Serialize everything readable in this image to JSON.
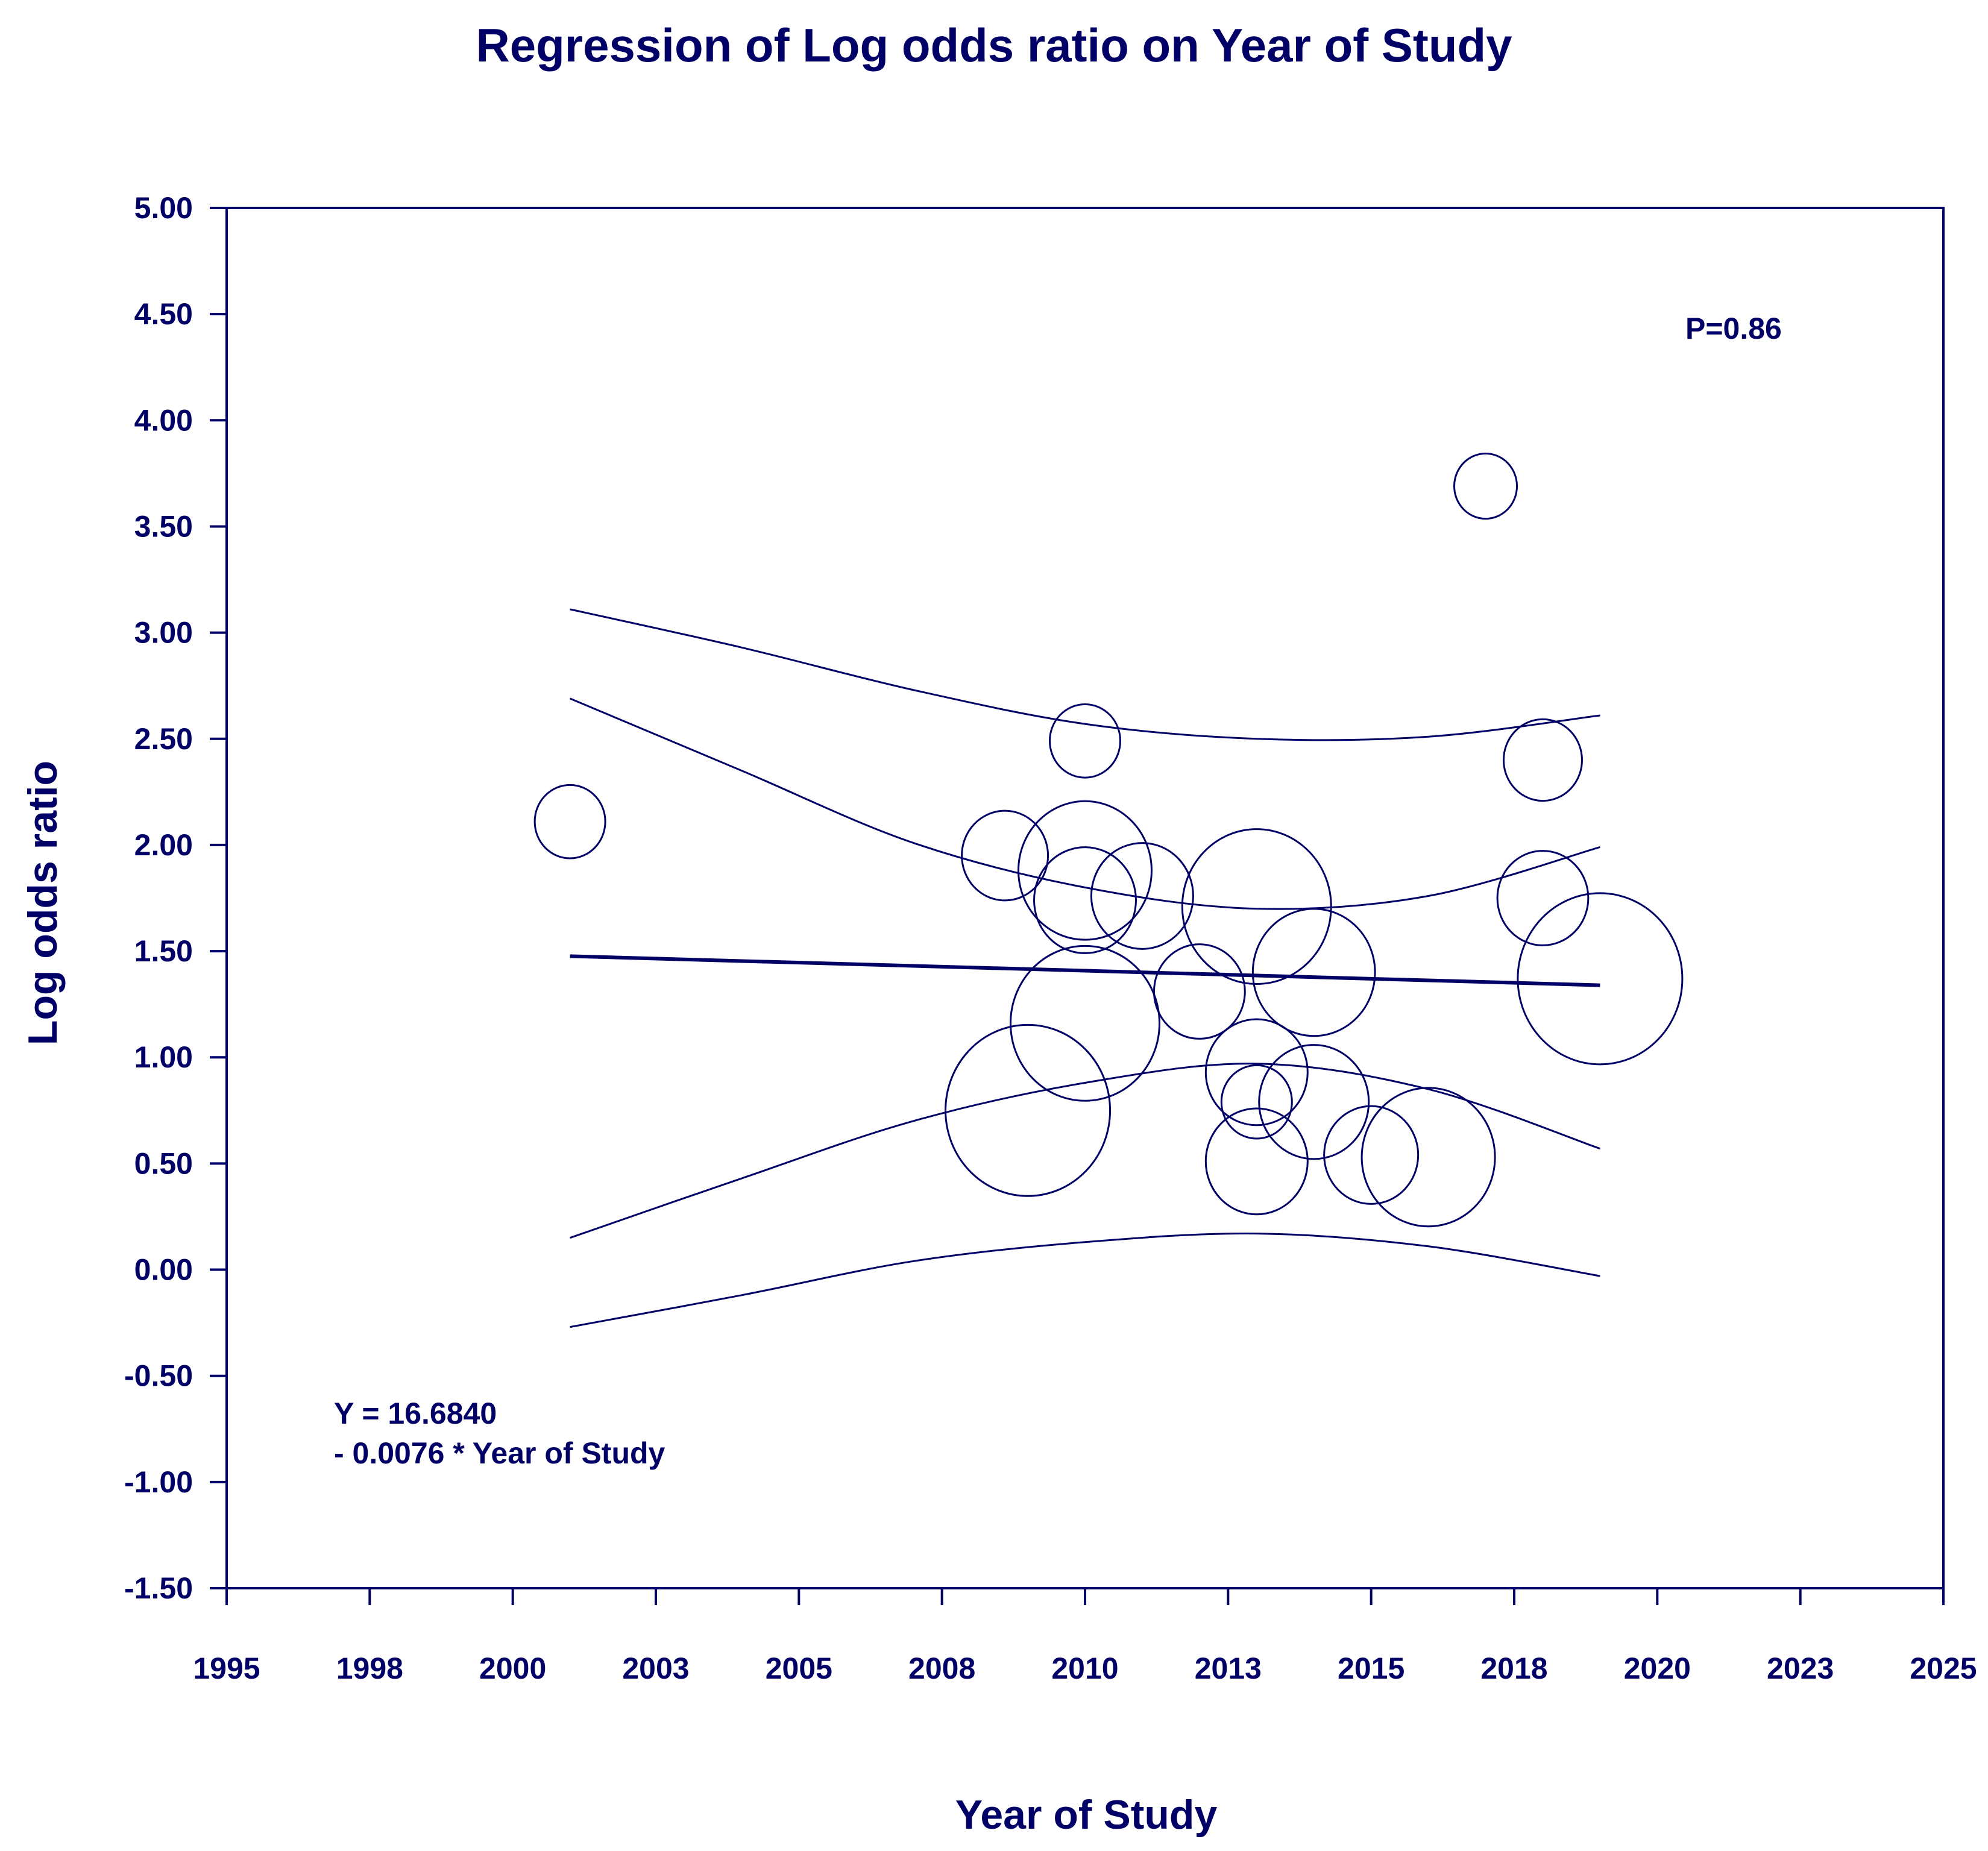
{
  "chart_data": {
    "type": "scatter",
    "title": "Regression of Log odds ratio on Year of Study",
    "xlabel": "Year of Study",
    "ylabel": "Log odds ratio",
    "xlim": [
      1995,
      2025
    ],
    "ylim": [
      -1.5,
      5.0
    ],
    "x_ticks": [
      1995,
      1997.5,
      2000,
      2002.5,
      2005,
      2007.5,
      2010,
      2012.5,
      2015,
      2017.5,
      2020,
      2022.5,
      2025
    ],
    "x_tick_labels": [
      "1995",
      "1998",
      "2000",
      "2003",
      "2005",
      "2008",
      "2010",
      "2013",
      "2015",
      "2018",
      "2020",
      "2023",
      "2025"
    ],
    "y_ticks": [
      5.0,
      4.5,
      4.0,
      3.5,
      3.0,
      2.5,
      2.0,
      1.5,
      1.0,
      0.5,
      0.0,
      -0.5,
      -1.0,
      -1.5
    ],
    "y_tick_labels": [
      "5.00",
      "4.50",
      "4.00",
      "3.50",
      "3.00",
      "2.50",
      "2.00",
      "1.50",
      "1.00",
      "0.50",
      "0.00",
      "-0.50",
      "-1.00",
      "-1.50"
    ],
    "points": [
      {
        "x": 2001.0,
        "y": 2.11,
        "weight": 0.45
      },
      {
        "x": 2010.0,
        "y": 2.49,
        "weight": 0.45
      },
      {
        "x": 2008.6,
        "y": 1.95,
        "weight": 0.55
      },
      {
        "x": 2010.0,
        "y": 1.88,
        "weight": 0.85
      },
      {
        "x": 2010.0,
        "y": 1.74,
        "weight": 0.65
      },
      {
        "x": 2011.0,
        "y": 1.76,
        "weight": 0.65
      },
      {
        "x": 2013.0,
        "y": 1.71,
        "weight": 0.95
      },
      {
        "x": 2014.0,
        "y": 1.4,
        "weight": 0.78
      },
      {
        "x": 2012.0,
        "y": 1.31,
        "weight": 0.58
      },
      {
        "x": 2010.0,
        "y": 1.16,
        "weight": 0.95
      },
      {
        "x": 2009.0,
        "y": 0.75,
        "weight": 1.05
      },
      {
        "x": 2013.0,
        "y": 0.93,
        "weight": 0.65
      },
      {
        "x": 2013.0,
        "y": 0.79,
        "weight": 0.45
      },
      {
        "x": 2014.0,
        "y": 0.79,
        "weight": 0.7
      },
      {
        "x": 2013.0,
        "y": 0.51,
        "weight": 0.65
      },
      {
        "x": 2015.0,
        "y": 0.54,
        "weight": 0.6
      },
      {
        "x": 2016.0,
        "y": 0.53,
        "weight": 0.85
      },
      {
        "x": 2017.0,
        "y": 3.69,
        "weight": 0.4
      },
      {
        "x": 2018.0,
        "y": 2.4,
        "weight": 0.5
      },
      {
        "x": 2018.0,
        "y": 1.75,
        "weight": 0.58
      },
      {
        "x": 2019.0,
        "y": 1.37,
        "weight": 1.05
      }
    ],
    "regression": {
      "intercept": 16.684,
      "slope": -0.0076,
      "x_range": [
        2001,
        2019
      ]
    },
    "bands": [
      {
        "name": "outer-upper",
        "x": [
          2001,
          2004,
          2007,
          2010,
          2013,
          2016,
          2019
        ],
        "y": [
          3.11,
          2.93,
          2.73,
          2.57,
          2.5,
          2.51,
          2.61
        ]
      },
      {
        "name": "inner-upper",
        "x": [
          2001,
          2004,
          2007,
          2010,
          2013,
          2016,
          2019
        ],
        "y": [
          2.69,
          2.35,
          2.01,
          1.8,
          1.7,
          1.76,
          1.99
        ]
      },
      {
        "name": "inner-lower",
        "x": [
          2001,
          2004,
          2007,
          2010,
          2013,
          2016,
          2019
        ],
        "y": [
          0.15,
          0.43,
          0.7,
          0.88,
          0.97,
          0.85,
          0.57
        ]
      },
      {
        "name": "outer-lower",
        "x": [
          2001,
          2004,
          2007,
          2010,
          2013,
          2016,
          2019
        ],
        "y": [
          -0.27,
          -0.12,
          0.04,
          0.13,
          0.17,
          0.11,
          -0.03
        ]
      }
    ]
  },
  "annotations": {
    "p_value": "P=0.86",
    "equation_line1": "Y = 16.6840",
    "equation_line2": "- 0.0076 * Year of Study"
  }
}
